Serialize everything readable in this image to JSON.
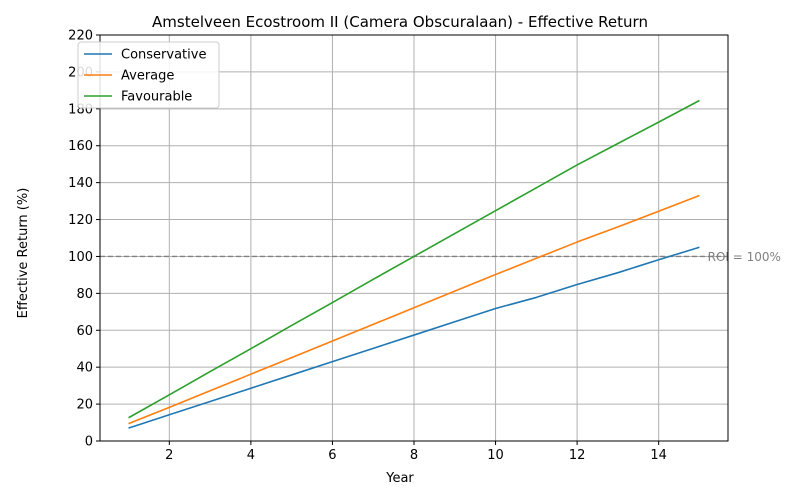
{
  "chart_data": {
    "type": "line",
    "title": "Amstelveen Ecostroom II (Camera Obscuralaan) - Effective Return",
    "xlabel": "Year",
    "ylabel": "Effective Return (%)",
    "xlim": [
      0.3,
      15.7
    ],
    "ylim": [
      0,
      220
    ],
    "xticks": [
      2,
      4,
      6,
      8,
      10,
      12,
      14
    ],
    "yticks": [
      0,
      20,
      40,
      60,
      80,
      100,
      120,
      140,
      160,
      180,
      200,
      220
    ],
    "grid": true,
    "legend_position": "top-left",
    "x": [
      1,
      2,
      3,
      4,
      5,
      6,
      7,
      8,
      9,
      10,
      11,
      12,
      13,
      14,
      15
    ],
    "series": [
      {
        "name": "Conservative",
        "color": "#1f77b4",
        "values": [
          7,
          14.2,
          21.4,
          28.6,
          35.8,
          43,
          50.2,
          57.4,
          64.6,
          71.8,
          77.8,
          84.8,
          91.2,
          98.2,
          105
        ]
      },
      {
        "name": "Average",
        "color": "#ff7f0e",
        "values": [
          9.4,
          18.2,
          27.2,
          36.2,
          45.2,
          54.2,
          63.2,
          72.2,
          81.2,
          90.2,
          99,
          107.8,
          116,
          124.5,
          133
        ]
      },
      {
        "name": "Favourable",
        "color": "#2ca02c",
        "values": [
          12.6,
          25,
          37.6,
          50,
          62.6,
          75,
          87.6,
          100,
          112.4,
          124.8,
          137.2,
          149.6,
          161.2,
          172.8,
          184.5
        ]
      }
    ],
    "reference_line": {
      "y": 100,
      "label": "ROI = 100%",
      "color": "#808080",
      "style": "dashed"
    }
  }
}
